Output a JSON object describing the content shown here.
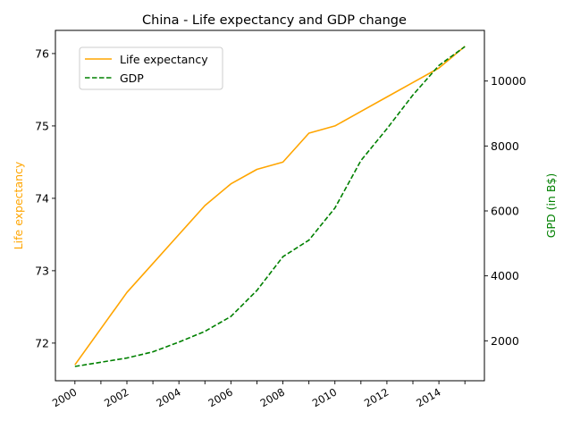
{
  "chart_data": {
    "type": "line",
    "title": "China - Life expectancy and GDP change",
    "xlabel": "",
    "x": [
      2000,
      2001,
      2002,
      2003,
      2004,
      2005,
      2006,
      2007,
      2008,
      2009,
      2010,
      2011,
      2012,
      2013,
      2014,
      2015
    ],
    "x_tick_labels": [
      "2000",
      "2002",
      "2004",
      "2006",
      "2008",
      "2010",
      "2012",
      "2014"
    ],
    "xlim": [
      1999.25,
      2015.75
    ],
    "grid": false,
    "legend_position": "upper-left",
    "axes": {
      "left": {
        "label": "Life expectancy",
        "color": "#ffa500",
        "ylim": [
          71.48,
          76.32
        ],
        "ticks": [
          72,
          73,
          74,
          75,
          76
        ],
        "tick_labels": [
          "72",
          "73",
          "74",
          "75",
          "76"
        ]
      },
      "right": {
        "label": "GPD (in B$)",
        "color": "#008000",
        "ylim": [
          770,
          11560
        ],
        "ticks": [
          2000,
          4000,
          6000,
          8000,
          10000
        ],
        "tick_labels": [
          "2000",
          "4000",
          "6000",
          "8000",
          "10000"
        ]
      }
    },
    "series": [
      {
        "name": "Life expectancy",
        "axis": "left",
        "color": "#ffa500",
        "style": "solid",
        "values": [
          71.7,
          72.2,
          72.7,
          73.1,
          73.5,
          73.9,
          74.2,
          74.4,
          74.5,
          74.9,
          75.0,
          75.2,
          75.4,
          75.6,
          75.8,
          76.1
        ]
      },
      {
        "name": "GDP",
        "axis": "right",
        "color": "#008000",
        "style": "dashed",
        "values": [
          1210,
          1340,
          1470,
          1660,
          1960,
          2290,
          2750,
          3550,
          4590,
          5100,
          6090,
          7550,
          8530,
          9570,
          10480,
          11060
        ]
      }
    ]
  }
}
